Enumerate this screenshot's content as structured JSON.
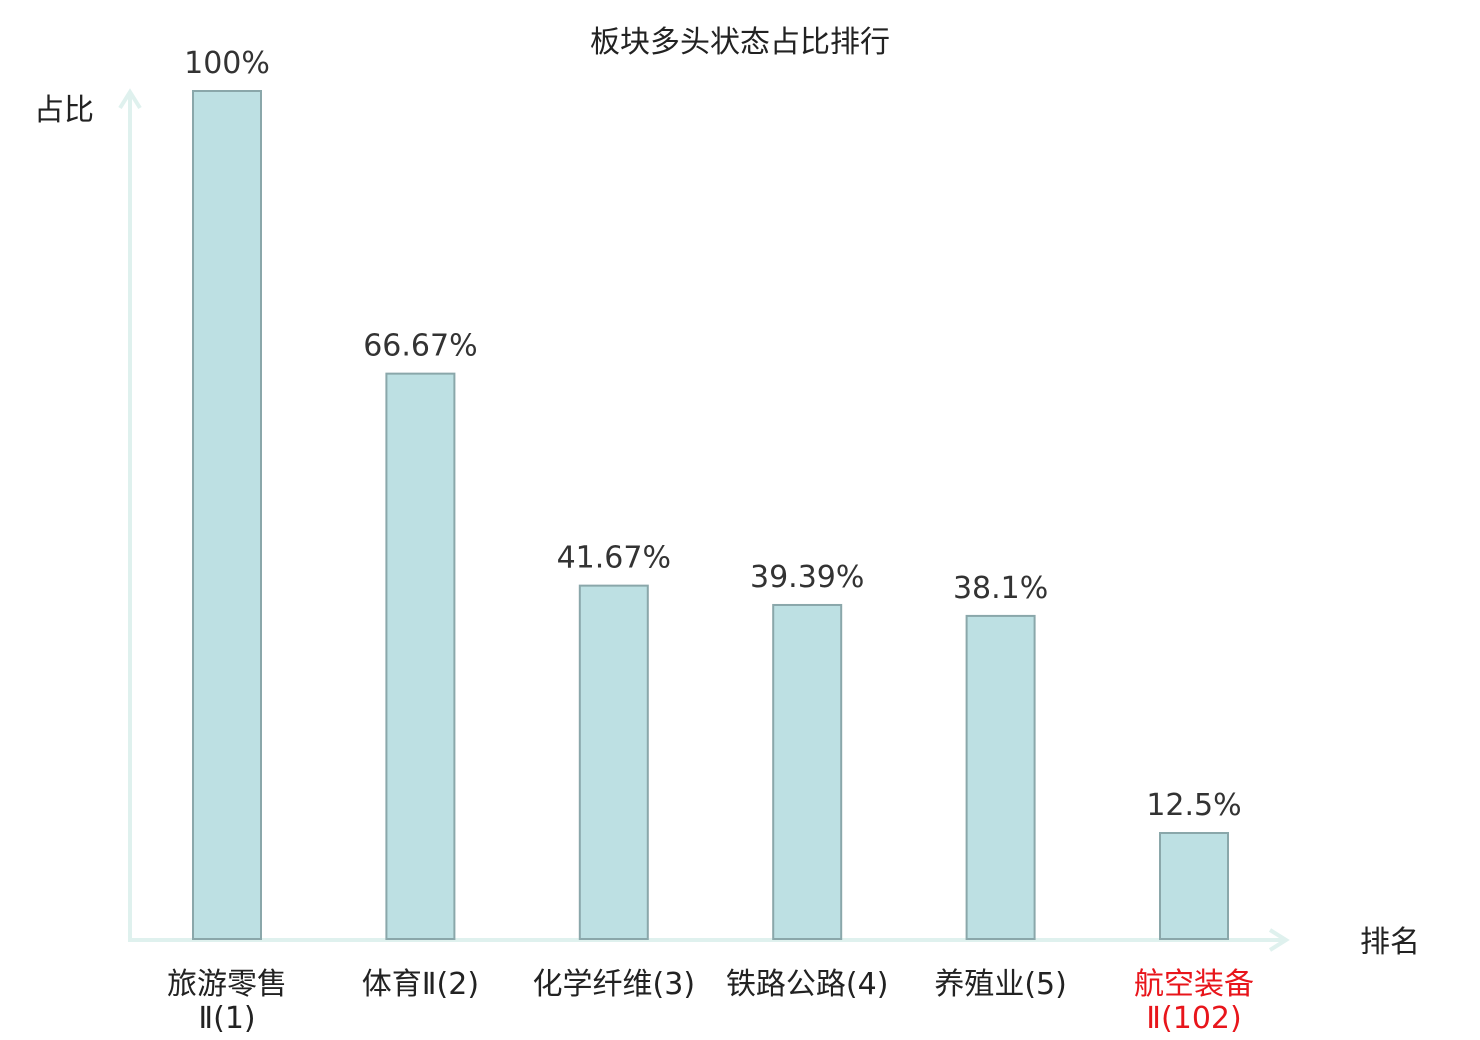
{
  "chart_data": {
    "type": "bar",
    "title": "板块多头状态占比排行",
    "ylabel": "占比",
    "xlabel": "排名",
    "ylim": [
      0,
      100
    ],
    "grid": false,
    "categories": [
      {
        "lines": [
          "旅游零售",
          "Ⅱ(1)"
        ],
        "highlight": false
      },
      {
        "lines": [
          "体育Ⅱ(2)"
        ],
        "highlight": false
      },
      {
        "lines": [
          "化学纤维(3)"
        ],
        "highlight": false
      },
      {
        "lines": [
          "铁路公路(4)"
        ],
        "highlight": false
      },
      {
        "lines": [
          "养殖业(5)"
        ],
        "highlight": false
      },
      {
        "lines": [
          "航空装备",
          "Ⅱ(102)"
        ],
        "highlight": true
      }
    ],
    "values": [
      100,
      66.67,
      41.67,
      39.39,
      38.1,
      12.5
    ],
    "value_labels": [
      "100%",
      "66.67%",
      "41.67%",
      "39.39%",
      "38.1%",
      "12.5%"
    ],
    "colors": {
      "bar_fill": "#bde0e3",
      "bar_stroke": "#8aa7aa",
      "axis": "#dff1ee",
      "highlight_text": "#e8151b",
      "text": "#222222",
      "value_text": "#333333"
    }
  }
}
